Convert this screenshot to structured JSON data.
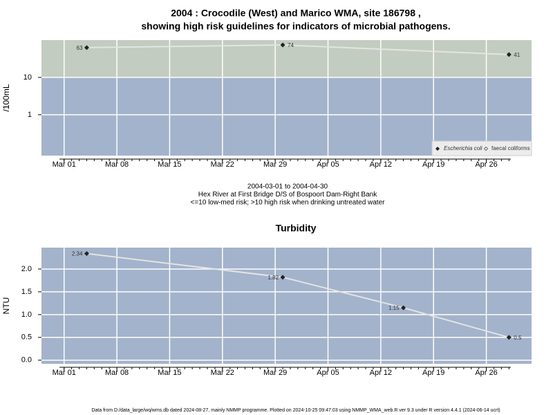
{
  "chart_data": [
    {
      "type": "line",
      "title": [
        "2004 : Crocodile (West) and Marico WMA, site 186798 ,",
        "showing high risk guidelines for indicators of microbial pathogens."
      ],
      "ylabel": "/100mL",
      "caption": [
        "2004-03-01 to 2004-04-30",
        "Hex River at First Bridge D/S of Bospoort Dam-Right Bank",
        "<=10 low-med risk; >10 high risk when drinking untreated water"
      ],
      "x": [
        "Mar 04",
        "Mar 30",
        "Apr 29"
      ],
      "series": [
        {
          "name": "Escherichia coli",
          "color": "#222222",
          "values": [
            63,
            74,
            41
          ],
          "value_labels": [
            "63",
            "74",
            "41"
          ]
        },
        {
          "name": "faecal coliforms",
          "color": "#222222",
          "values": [
            null,
            null,
            null
          ]
        }
      ],
      "log_scale": true,
      "threshold": 10,
      "above_color": "#c3ccc0",
      "below_color": "#a3b3cb",
      "line_color": "#e4e4e4",
      "xlim": [
        "Feb 27",
        "May 02"
      ],
      "xticks": [
        "Mar 01",
        "Mar 08",
        "Mar 15",
        "Mar 22",
        "Mar 29",
        "Apr 05",
        "Apr 12",
        "Apr 19",
        "Apr 26"
      ],
      "ylim": [
        0.08,
        100
      ],
      "yticks": [
        1,
        10
      ],
      "grid": true,
      "legend": "bottom-right"
    },
    {
      "type": "line",
      "title": [
        "Turbidity"
      ],
      "ylabel": "NTU",
      "x": [
        "Mar 04",
        "Mar 30",
        "Apr 15",
        "Apr 29"
      ],
      "series": [
        {
          "name": "Turbidity",
          "color": "#222222",
          "values": [
            2.34,
            1.82,
            1.15,
            0.5
          ],
          "value_labels": [
            "2.34",
            "1.82",
            "1.15",
            "0.5"
          ]
        }
      ],
      "log_scale": false,
      "below_color": "#a3b3cb",
      "line_color": "#e4e4e4",
      "xlim": [
        "Feb 27",
        "May 02"
      ],
      "xticks": [
        "Mar 01",
        "Mar 08",
        "Mar 15",
        "Mar 22",
        "Mar 29",
        "Apr 05",
        "Apr 12",
        "Apr 19",
        "Apr 26"
      ],
      "ylim": [
        -0.08,
        2.47
      ],
      "yticks": [
        {
          "value": 0,
          "label": "0.0"
        },
        0.5,
        {
          "value": 1,
          "label": "1.0"
        },
        1.5,
        {
          "value": 2,
          "label": "2.0"
        }
      ],
      "grid": true
    }
  ],
  "footer": "Data from D:/data_large/wq/wms.db dated 2024-08-27, mainly NMMP programme. Plotted on 2024-10-25 09:47:03 using NMMP_WMA_web.R ver 9.3 under R version 4.4.1 (2024-06-14 ucrt)"
}
